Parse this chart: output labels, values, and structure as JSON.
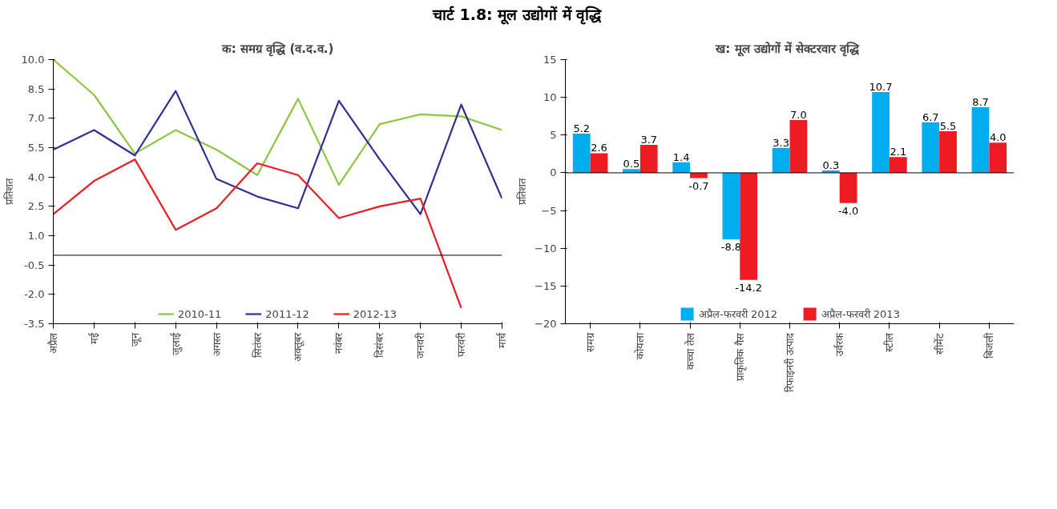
{
  "chart_data": [
    {
      "type": "other",
      "title": "चार्ट 1.8: मूल उद्योगों में वृद्धि"
    },
    {
      "type": "line",
      "title": "क: समग्र वृद्धि (व.द.व.)",
      "ylabel": "प्रतिशत",
      "categories": [
        "अप्रैल",
        "मई",
        "जून",
        "जुलाई",
        "अगस्त",
        "सितंबर",
        "अक्तूबर",
        "नवंबर",
        "दिसंबर",
        "जनवरी",
        "फरवरी",
        "मार्च"
      ],
      "series": [
        {
          "name": "2010-11",
          "color": "#8dc63f",
          "values": [
            10.0,
            8.2,
            5.2,
            6.4,
            5.4,
            4.1,
            8.0,
            3.6,
            6.7,
            7.2,
            7.1,
            6.4
          ]
        },
        {
          "name": "2011-12",
          "color": "#2e3192",
          "values": [
            5.4,
            6.4,
            5.1,
            8.4,
            3.9,
            3.0,
            2.4,
            7.9,
            4.9,
            2.1,
            7.7,
            2.9
          ]
        },
        {
          "name": "2012-13",
          "color": "#ed1c24",
          "values": [
            2.1,
            3.8,
            4.9,
            1.3,
            2.4,
            4.7,
            4.1,
            1.9,
            2.5,
            2.9,
            -2.7,
            null
          ]
        }
      ],
      "ylim": [
        -3.5,
        10
      ],
      "yticks": [
        {
          "value": 10,
          "label": "10.0"
        },
        {
          "value": 8.5,
          "label": "8.5"
        },
        {
          "value": 7,
          "label": "7.0"
        },
        {
          "value": 5.5,
          "label": "5.5"
        },
        {
          "value": 4,
          "label": "4.0"
        },
        {
          "value": 2.5,
          "label": "2.5"
        },
        {
          "value": 1,
          "label": "1.0"
        },
        {
          "value": -0.5,
          "label": "-0.5"
        },
        {
          "value": -2,
          "label": "-2.0"
        },
        {
          "value": -3.5,
          "label": "-3.5"
        }
      ],
      "ref_lines": [
        {
          "axis": "y",
          "value": 0
        }
      ],
      "legend": "bottom",
      "grid": false
    },
    {
      "type": "bar",
      "title": "ख: मूल उद्योगों में  सेक्टरवार वृद्धि",
      "ylabel": "प्रतिशत",
      "categories": [
        "समग्र",
        "कोयला",
        "कच्चा तेल",
        "प्राकृतिक गैस",
        "रिफाइनरी उत्पाद",
        "उर्वरक",
        "स्टील",
        "सीमेंट",
        "बिजली"
      ],
      "series": [
        {
          "name": "अप्रैल-फरवरी 2012",
          "color": "#00aeef",
          "values": [
            5.2,
            0.5,
            1.4,
            -8.8,
            3.3,
            0.3,
            10.7,
            6.7,
            8.7
          ],
          "value_labels": [
            "5.2",
            "0.5",
            "1.4",
            "-8.8",
            "3.3",
            "0.3",
            "10.7",
            "6.7",
            "8.7"
          ]
        },
        {
          "name": "अप्रैल-फरवरी 2013",
          "color": "#ed1c24",
          "values": [
            2.6,
            3.7,
            -0.7,
            -14.2,
            7.0,
            -4.0,
            2.1,
            5.5,
            4.0
          ],
          "value_labels": [
            "2.6",
            "3.7",
            "-0.7",
            "-14.2",
            "7.0",
            "-4.0",
            "2.1",
            "5.5",
            "4.0"
          ]
        }
      ],
      "ylim": [
        -20,
        15
      ],
      "yticks": [
        -20,
        -15,
        -10,
        -5,
        0,
        5,
        10,
        15
      ],
      "ref_lines": [
        {
          "axis": "y",
          "value": 0
        }
      ],
      "legend": "bottom",
      "grid": false
    }
  ]
}
